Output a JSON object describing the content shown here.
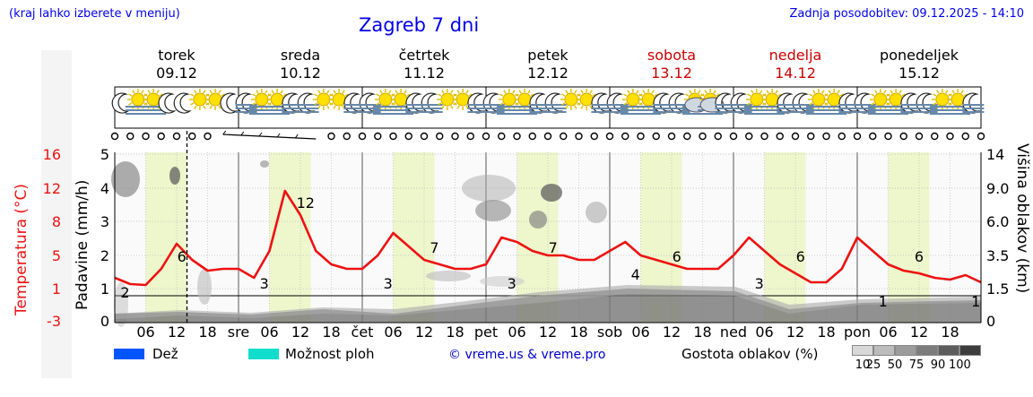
{
  "header": {
    "menu_hint": "(kraj lahko izberete v meniju)",
    "title": "Zagreb 7 dni",
    "last_update": "Zadnja posodobitev: 09.12.2025 - 14:10"
  },
  "days": [
    {
      "name": "torek",
      "date": "09.12",
      "weekend": false
    },
    {
      "name": "sreda",
      "date": "10.12",
      "weekend": false
    },
    {
      "name": "četrtek",
      "date": "11.12",
      "weekend": false
    },
    {
      "name": "petek",
      "date": "12.12",
      "weekend": false
    },
    {
      "name": "sobota",
      "date": "13.12",
      "weekend": true
    },
    {
      "name": "nedelja",
      "date": "14.12",
      "weekend": true
    },
    {
      "name": "ponedeljek",
      "date": "15.12",
      "weekend": false
    }
  ],
  "x_axis_labels": [
    "06",
    "12",
    "18",
    "sre",
    "06",
    "12",
    "18",
    "čet",
    "06",
    "12",
    "18",
    "pet",
    "06",
    "12",
    "18",
    "sob",
    "06",
    "12",
    "18",
    "ned",
    "06",
    "12",
    "18",
    "pon",
    "06",
    "12",
    "18"
  ],
  "axes": {
    "left_temp_label": "Temperatura (°C)",
    "left_temp_ticks": [
      "16",
      "12",
      "8",
      "5",
      "1",
      "-3"
    ],
    "left_precip_label": "Padavine (mm/h)",
    "left_precip_ticks": [
      "5",
      "4",
      "3",
      "2",
      "1",
      "0"
    ],
    "right_label": "Višina oblakov (km)",
    "right_ticks": [
      "14",
      "9.0",
      "6.0",
      "3.5",
      "1.5",
      "0"
    ]
  },
  "chart_data": {
    "type": "line",
    "x_unit": "hours since 09.12 00:00",
    "series": [
      {
        "name": "Temperatura",
        "color": "#ee1111",
        "x": [
          0,
          3,
          6,
          9,
          12,
          15,
          18,
          21,
          24,
          27,
          30,
          33,
          36,
          39,
          42,
          45,
          48,
          51,
          54,
          57,
          60,
          63,
          66,
          69,
          72,
          75,
          78,
          81,
          84,
          87,
          90,
          93,
          96,
          99,
          102,
          105,
          108,
          111,
          114,
          117,
          120,
          123,
          126,
          129,
          132,
          135,
          138,
          141,
          144,
          147,
          150,
          153,
          156,
          159,
          162,
          165,
          168
        ],
        "y": [
          2,
          1.3,
          1.2,
          3,
          5.8,
          4,
          2.8,
          3,
          3,
          2,
          5,
          11.7,
          9,
          5,
          3.5,
          3,
          3,
          4.5,
          7,
          5.5,
          4,
          3.5,
          3,
          3,
          3.5,
          6.5,
          6,
          5,
          4.5,
          4.5,
          4,
          4,
          5,
          6,
          4.5,
          4,
          3.5,
          3,
          3,
          3,
          4.5,
          6.5,
          5,
          3.5,
          2.5,
          1.5,
          1.5,
          3,
          6.5,
          5,
          3.5,
          2.8,
          2.5,
          2,
          1.8,
          2.3,
          1.5
        ]
      }
    ],
    "temp_labels": [
      {
        "x": 2,
        "value": "2"
      },
      {
        "x": 13,
        "value": "6"
      },
      {
        "x": 29,
        "value": "3"
      },
      {
        "x": 37,
        "value": "12"
      },
      {
        "x": 53,
        "value": "3"
      },
      {
        "x": 62,
        "value": "7"
      },
      {
        "x": 77,
        "value": "3"
      },
      {
        "x": 85,
        "value": "7"
      },
      {
        "x": 101,
        "value": "4"
      },
      {
        "x": 109,
        "value": "6"
      },
      {
        "x": 125,
        "value": "3"
      },
      {
        "x": 133,
        "value": "6"
      },
      {
        "x": 149,
        "value": "1"
      },
      {
        "x": 156,
        "value": "6"
      },
      {
        "x": 167,
        "value": "1"
      }
    ],
    "now_hour": 14,
    "ylim_temp": [
      -3,
      16
    ],
    "ylim_precip": [
      0,
      5
    ]
  },
  "legend": {
    "rain_label": "Dež",
    "rain_color": "#0055ff",
    "shower_label": "Možnost ploh",
    "shower_color": "#11ddcc",
    "credit": "© vreme.us & vreme.pro",
    "cloud_density_label": "Gostota oblakov (%)",
    "density_levels": [
      "10",
      "25",
      "50",
      "75",
      "90",
      "100"
    ]
  }
}
